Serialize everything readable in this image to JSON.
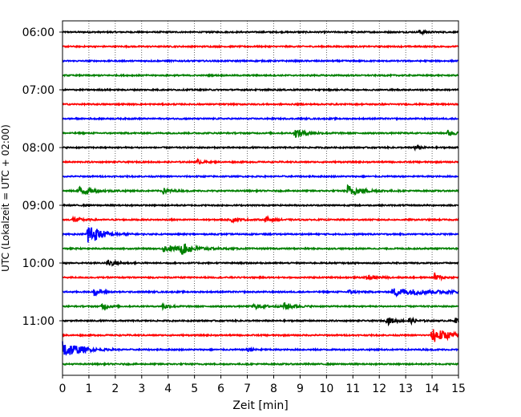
{
  "chart_data": {
    "type": "line",
    "title": "",
    "xlabel": "Zeit  [min]",
    "ylabel": "UTC (Lokalzeit = UTC + 02:00)",
    "x_ticks": [
      "0",
      "1",
      "2",
      "3",
      "4",
      "5",
      "6",
      "7",
      "8",
      "9",
      "10",
      "11",
      "12",
      "13",
      "14",
      "15"
    ],
    "xlim": [
      0,
      15
    ],
    "y_ticks": [
      "06:00",
      "07:00",
      "08:00",
      "09:00",
      "10:00",
      "11:00"
    ],
    "row_interval_min": 15,
    "start_time": "06:00",
    "grid": "vertical-dotted",
    "trace_colors": [
      "#000000",
      "#ff0000",
      "#0000ff",
      "#008000"
    ],
    "rows": [
      {
        "label": "06:00",
        "events": [
          {
            "t": 13.5,
            "amp": 0.3,
            "dur": 0.3
          }
        ]
      },
      {
        "label": "06:15",
        "events": []
      },
      {
        "label": "06:30",
        "events": []
      },
      {
        "label": "06:45",
        "events": []
      },
      {
        "label": "07:00",
        "events": []
      },
      {
        "label": "07:15",
        "events": []
      },
      {
        "label": "07:30",
        "events": []
      },
      {
        "label": "07:45",
        "events": [
          {
            "t": 8.8,
            "amp": 0.5,
            "dur": 0.8
          },
          {
            "t": 14.6,
            "amp": 0.4,
            "dur": 0.4
          }
        ]
      },
      {
        "label": "08:00",
        "events": [
          {
            "t": 13.3,
            "amp": 0.3,
            "dur": 0.3
          }
        ]
      },
      {
        "label": "08:15",
        "events": [
          {
            "t": 5.1,
            "amp": 0.3,
            "dur": 0.3
          }
        ]
      },
      {
        "label": "08:30",
        "events": []
      },
      {
        "label": "08:45",
        "events": [
          {
            "t": 0.6,
            "amp": 0.6,
            "dur": 0.8
          },
          {
            "t": 3.8,
            "amp": 0.4,
            "dur": 0.4
          },
          {
            "t": 10.8,
            "amp": 0.8,
            "dur": 0.8
          }
        ]
      },
      {
        "label": "09:00",
        "events": []
      },
      {
        "label": "09:15",
        "events": [
          {
            "t": 0.4,
            "amp": 0.4,
            "dur": 0.4
          },
          {
            "t": 6.4,
            "amp": 0.3,
            "dur": 0.5
          },
          {
            "t": 7.7,
            "amp": 0.4,
            "dur": 0.4
          }
        ]
      },
      {
        "label": "09:30",
        "events": [
          {
            "t": 0.95,
            "amp": 1.7,
            "dur": 0.7
          }
        ]
      },
      {
        "label": "09:45",
        "events": [
          {
            "t": 3.8,
            "amp": 0.4,
            "dur": 1.4
          },
          {
            "t": 4.5,
            "amp": 0.7,
            "dur": 0.6
          }
        ]
      },
      {
        "label": "10:00",
        "events": [
          {
            "t": 1.7,
            "amp": 0.5,
            "dur": 0.5
          }
        ]
      },
      {
        "label": "10:15",
        "events": [
          {
            "t": 11.5,
            "amp": 0.3,
            "dur": 0.6
          },
          {
            "t": 14.1,
            "amp": 0.6,
            "dur": 0.3
          }
        ]
      },
      {
        "label": "10:30",
        "events": [
          {
            "t": 1.2,
            "amp": 0.5,
            "dur": 0.4
          },
          {
            "t": 10.8,
            "amp": 0.3,
            "dur": 0.4
          },
          {
            "t": 12.5,
            "amp": 0.5,
            "dur": 2.4
          }
        ]
      },
      {
        "label": "10:45",
        "events": [
          {
            "t": 1.5,
            "amp": 0.5,
            "dur": 0.3
          },
          {
            "t": 3.8,
            "amp": 0.4,
            "dur": 0.4
          },
          {
            "t": 7.2,
            "amp": 0.3,
            "dur": 0.8
          },
          {
            "t": 8.4,
            "amp": 0.5,
            "dur": 0.5
          }
        ]
      },
      {
        "label": "11:00",
        "events": [
          {
            "t": 12.3,
            "amp": 0.5,
            "dur": 0.5
          },
          {
            "t": 13.1,
            "amp": 0.4,
            "dur": 0.4
          },
          {
            "t": 14.9,
            "amp": 0.5,
            "dur": 0.2
          }
        ]
      },
      {
        "label": "11:15",
        "events": [
          {
            "t": 14.0,
            "amp": 1.1,
            "dur": 1.0
          }
        ]
      },
      {
        "label": "11:30",
        "events": [
          {
            "t": 0.0,
            "amp": 1.3,
            "dur": 0.9
          },
          {
            "t": 7.0,
            "amp": 0.3,
            "dur": 0.4
          }
        ]
      },
      {
        "label": "11:45",
        "events": []
      }
    ]
  }
}
